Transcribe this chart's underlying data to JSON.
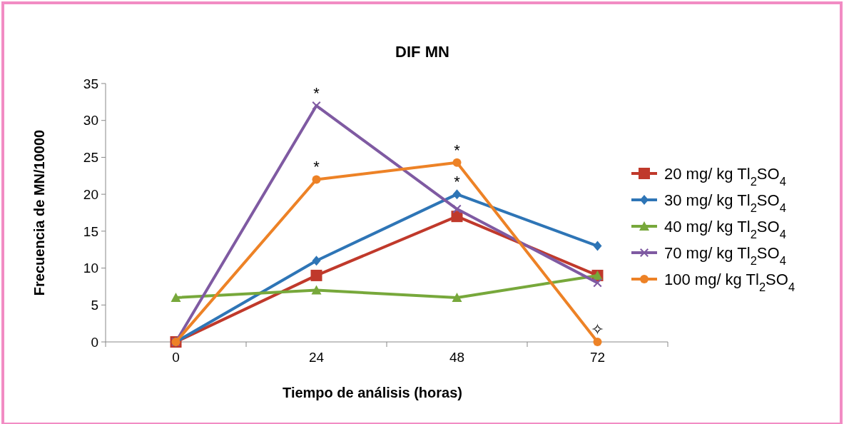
{
  "chart_data": {
    "type": "line",
    "title": "DIF MN",
    "xlabel": "Tiempo de análisis (horas)",
    "ylabel": "Frecuencia de MN/10000",
    "categories": [
      "0",
      "24",
      "48",
      "72"
    ],
    "series": [
      {
        "name": "20 mg/ kg Tl$_{2}$SO$_{4}$",
        "color": "#c0392b",
        "marker": "square",
        "values": [
          0,
          9,
          17,
          9
        ]
      },
      {
        "name": "30 mg/ kg Tl$_{2}$SO$_{4}$",
        "color": "#2e75b6",
        "marker": "diamond",
        "values": [
          0,
          11,
          20,
          13
        ]
      },
      {
        "name": "40 mg/ kg Tl$_{2}$SO$_{4}$",
        "color": "#77a83b",
        "marker": "triangle",
        "values": [
          6,
          7,
          6,
          9
        ]
      },
      {
        "name": "70 mg/ kg Tl$_{2}$SO$_{4}$",
        "color": "#7f5aa2",
        "marker": "cross",
        "values": [
          0,
          32,
          18,
          8
        ]
      },
      {
        "name": "100 mg/ kg Tl$_{2}$SO$_{4}$",
        "color": "#ed8226",
        "marker": "circle",
        "values": [
          0,
          22,
          24.3,
          0
        ]
      }
    ],
    "ylim": [
      0,
      35
    ],
    "yticks": [
      0,
      5,
      10,
      15,
      20,
      25,
      30,
      35
    ],
    "grid": false,
    "legend": "right",
    "line_style": "solid",
    "annotations": [
      {
        "text": "*",
        "x": "24",
        "y": 32
      },
      {
        "text": "*",
        "x": "24",
        "y": 22
      },
      {
        "text": "*",
        "x": "48",
        "y": 24.3
      },
      {
        "text": "*",
        "x": "48",
        "y": 20
      },
      {
        "text": "✧",
        "x": "72",
        "y": 0
      }
    ]
  }
}
